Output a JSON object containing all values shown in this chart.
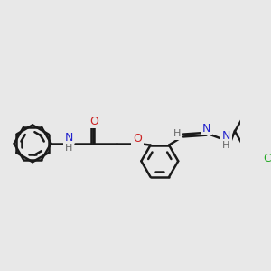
{
  "bg_color": "#e8e8e8",
  "bond_color": "#1a1a1a",
  "bond_width": 1.8,
  "atom_colors": {
    "N": "#2222cc",
    "O": "#cc2222",
    "Cl": "#22aa22",
    "C": "#1a1a1a",
    "H": "#666666"
  },
  "figsize": [
    3.0,
    3.0
  ],
  "dpi": 100
}
